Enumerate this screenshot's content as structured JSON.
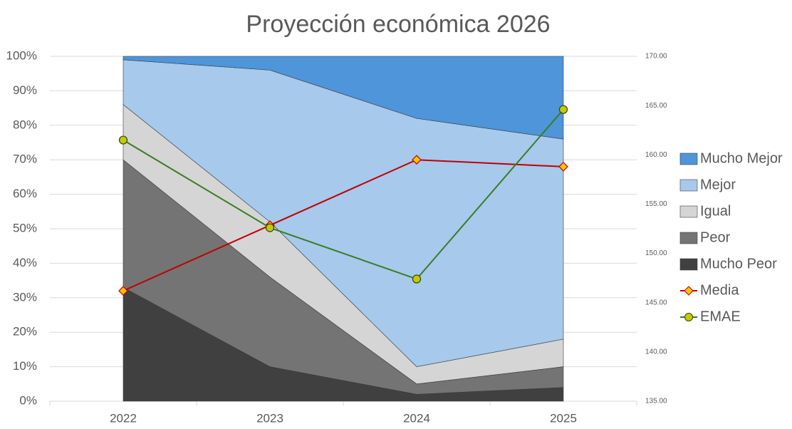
{
  "chart_data": {
    "type": "area",
    "stacked": true,
    "title": "Proyección económica 2026",
    "categories": [
      "2022",
      "2023",
      "2024",
      "2025"
    ],
    "ylim": [
      0,
      100
    ],
    "yticks": [
      {
        "value": 0,
        "label": "0%"
      },
      {
        "value": 10,
        "label": "10%"
      },
      {
        "value": 20,
        "label": "20%"
      },
      {
        "value": 30,
        "label": "30%"
      },
      {
        "value": 40,
        "label": "40%"
      },
      {
        "value": 50,
        "label": "50%"
      },
      {
        "value": 60,
        "label": "60%"
      },
      {
        "value": 70,
        "label": "70%"
      },
      {
        "value": 80,
        "label": "80%"
      },
      {
        "value": 90,
        "label": "90%"
      },
      {
        "value": 100,
        "label": "100%"
      }
    ],
    "y2lim": [
      135,
      170
    ],
    "y2ticks": [
      {
        "value": 135,
        "label": "135.00"
      },
      {
        "value": 140,
        "label": "140.00"
      },
      {
        "value": 145,
        "label": "145.00"
      },
      {
        "value": 150,
        "label": "150.00"
      },
      {
        "value": 155,
        "label": "155.00"
      },
      {
        "value": 160,
        "label": "160.00"
      },
      {
        "value": 165,
        "label": "165.00"
      },
      {
        "value": 170,
        "label": "170.00"
      }
    ],
    "grid": true,
    "legend": "right",
    "series": [
      {
        "name": "Mucho Peor",
        "type": "area",
        "color": "#404040",
        "values": [
          33,
          10,
          2,
          4
        ]
      },
      {
        "name": "Peor",
        "type": "area",
        "color": "#747474",
        "values": [
          37,
          26,
          3,
          6
        ]
      },
      {
        "name": "Igual",
        "type": "area",
        "color": "#d5d5d5",
        "values": [
          16,
          16,
          5,
          8
        ]
      },
      {
        "name": "Mejor",
        "type": "area",
        "color": "#a6c9ec",
        "values": [
          13,
          44,
          72,
          58
        ]
      },
      {
        "name": "Mucho Mejor",
        "type": "area",
        "color": "#4e95d9",
        "values": [
          1,
          4,
          18,
          24
        ]
      },
      {
        "name": "Media",
        "type": "line",
        "color": "#c00000",
        "marker": "diamond",
        "marker_color": "#ffc000",
        "values": [
          32,
          51,
          70,
          68
        ]
      },
      {
        "name": "EMAE",
        "type": "line",
        "axis": "y2",
        "color": "#3b7d23",
        "marker": "circle",
        "marker_color": "#c8c800",
        "values": [
          161.5,
          152.6,
          147.4,
          164.6
        ]
      }
    ]
  }
}
